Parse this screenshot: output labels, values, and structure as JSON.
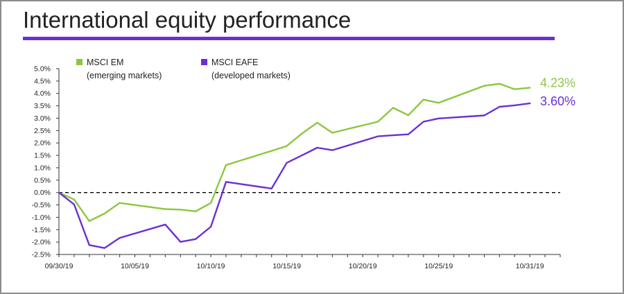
{
  "title": "International equity performance",
  "colors": {
    "em": "#8cc63f",
    "eafe": "#6a2fd6",
    "accent_rule": "#6a2fd6",
    "zero_line": "#000000"
  },
  "legend": [
    {
      "line1": "MSCI EM",
      "line2": "(emerging markets)",
      "color": "#8cc63f"
    },
    {
      "line1": "MSCI EAFE",
      "line2": "(developed markets)",
      "color": "#6a2fd6"
    }
  ],
  "end_labels": {
    "em": "4.23%",
    "eafe": "3.60%"
  },
  "chart_data": {
    "type": "line",
    "title": "International equity performance",
    "xlabel": "",
    "ylabel": "",
    "ylim": [
      -2.5,
      5.0
    ],
    "y_ticks": [
      "5.0%",
      "4.5%",
      "4.0%",
      "3.5%",
      "3.0%",
      "2.5%",
      "2.0%",
      "1.5%",
      "1.0%",
      "0.5%",
      "0.0%",
      "-0.5%",
      "-1.0%",
      "-1.5%",
      "-2.0%",
      "-2.5%"
    ],
    "y_tick_values": [
      5.0,
      4.5,
      4.0,
      3.5,
      3.0,
      2.5,
      2.0,
      1.5,
      1.0,
      0.5,
      0.0,
      -0.5,
      -1.0,
      -1.5,
      -2.0,
      -2.5
    ],
    "xlim": [
      "09/30/19",
      "11/02/19"
    ],
    "x_ticks": [
      "09/30/19",
      "10/05/19",
      "10/10/19",
      "10/15/19",
      "10/20/19",
      "10/25/19",
      "10/31/19"
    ],
    "grid": false,
    "legend_position": "top-left",
    "reference_line": {
      "y": 0.0,
      "style": "dashed"
    },
    "series": [
      {
        "name": "MSCI EM",
        "color": "#8cc63f",
        "points": [
          [
            "09/30/19",
            0.0
          ],
          [
            "10/01/19",
            -0.28
          ],
          [
            "10/02/19",
            -1.15
          ],
          [
            "10/03/19",
            -0.85
          ],
          [
            "10/04/19",
            -0.42
          ],
          [
            "10/07/19",
            -0.67
          ],
          [
            "10/08/19",
            -0.69
          ],
          [
            "10/09/19",
            -0.76
          ],
          [
            "10/10/19",
            -0.42
          ],
          [
            "10/11/19",
            1.11
          ],
          [
            "10/14/19",
            1.68
          ],
          [
            "10/15/19",
            1.88
          ],
          [
            "10/16/19",
            2.38
          ],
          [
            "10/17/19",
            2.82
          ],
          [
            "10/18/19",
            2.41
          ],
          [
            "10/21/19",
            2.86
          ],
          [
            "10/22/19",
            3.42
          ],
          [
            "10/23/19",
            3.12
          ],
          [
            "10/24/19",
            3.75
          ],
          [
            "10/25/19",
            3.62
          ],
          [
            "10/28/19",
            4.31
          ],
          [
            "10/29/19",
            4.39
          ],
          [
            "10/30/19",
            4.17
          ],
          [
            "10/31/19",
            4.23
          ]
        ]
      },
      {
        "name": "MSCI EAFE",
        "color": "#6a2fd6",
        "points": [
          [
            "09/30/19",
            0.0
          ],
          [
            "10/01/19",
            -0.48
          ],
          [
            "10/02/19",
            -2.12
          ],
          [
            "10/03/19",
            -2.24
          ],
          [
            "10/04/19",
            -1.83
          ],
          [
            "10/07/19",
            -1.29
          ],
          [
            "10/08/19",
            -1.99
          ],
          [
            "10/09/19",
            -1.88
          ],
          [
            "10/10/19",
            -1.38
          ],
          [
            "10/11/19",
            0.43
          ],
          [
            "10/14/19",
            0.16
          ],
          [
            "10/15/19",
            1.2
          ],
          [
            "10/16/19",
            1.5
          ],
          [
            "10/17/19",
            1.81
          ],
          [
            "10/18/19",
            1.71
          ],
          [
            "10/21/19",
            2.27
          ],
          [
            "10/22/19",
            2.31
          ],
          [
            "10/23/19",
            2.35
          ],
          [
            "10/24/19",
            2.86
          ],
          [
            "10/25/19",
            2.99
          ],
          [
            "10/28/19",
            3.11
          ],
          [
            "10/29/19",
            3.46
          ],
          [
            "10/30/19",
            3.52
          ],
          [
            "10/31/19",
            3.6
          ]
        ]
      }
    ]
  }
}
